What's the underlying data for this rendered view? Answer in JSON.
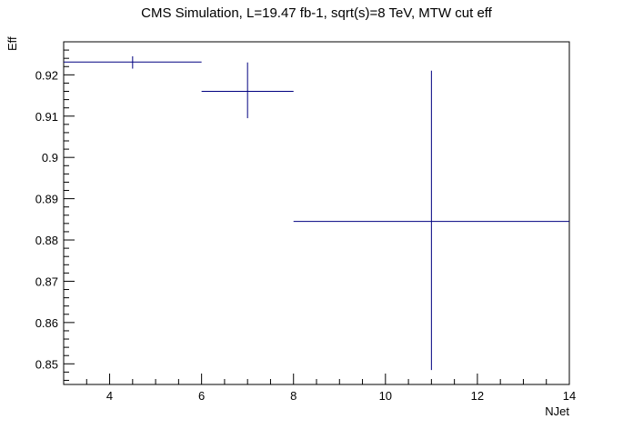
{
  "chart_data": {
    "type": "scatter",
    "title": "CMS Simulation, L=19.47 fb-1, sqrt(s)=8 TeV, MTW cut eff",
    "xlabel": "NJet",
    "ylabel": "Eff",
    "xlim": [
      3,
      14
    ],
    "ylim": [
      0.845,
      0.928
    ],
    "x_ticks": [
      4,
      6,
      8,
      10,
      12,
      14
    ],
    "y_ticks": [
      0.85,
      0.86,
      0.87,
      0.88,
      0.89,
      0.9,
      0.91,
      0.92
    ],
    "marker_color": "#000080",
    "points": [
      {
        "x": 4.5,
        "xlow": 3,
        "xhigh": 6,
        "y": 0.9231,
        "ylow": 0.9215,
        "yhigh": 0.9245
      },
      {
        "x": 7,
        "xlow": 6,
        "xhigh": 8,
        "y": 0.916,
        "ylow": 0.9095,
        "yhigh": 0.923
      },
      {
        "x": 11,
        "xlow": 8,
        "xhigh": 14,
        "y": 0.8845,
        "ylow": 0.8485,
        "yhigh": 0.921
      }
    ]
  }
}
